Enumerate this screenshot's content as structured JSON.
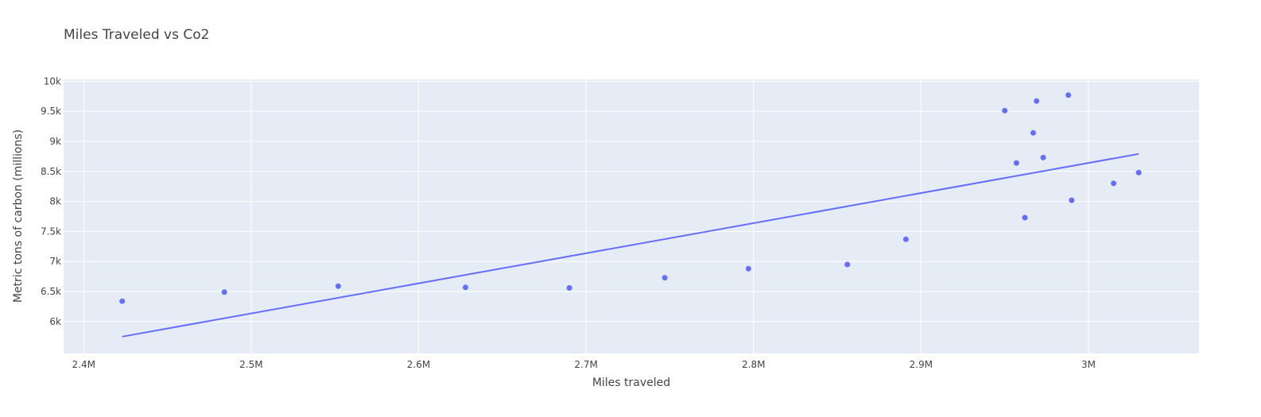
{
  "chart_data": {
    "type": "scatter",
    "title": "Miles Traveled vs Co2",
    "xlabel": "Miles traveled",
    "ylabel": "Metric tons of carbon (millions)",
    "xlim": [
      2388000,
      3066000
    ],
    "ylim": [
      5470,
      10030
    ],
    "x_ticks": [
      {
        "value": 2400000,
        "label": "2.4M"
      },
      {
        "value": 2500000,
        "label": "2.5M"
      },
      {
        "value": 2600000,
        "label": "2.6M"
      },
      {
        "value": 2700000,
        "label": "2.7M"
      },
      {
        "value": 2800000,
        "label": "2.8M"
      },
      {
        "value": 2900000,
        "label": "2.9M"
      },
      {
        "value": 3000000,
        "label": "3M"
      }
    ],
    "y_ticks": [
      {
        "value": 6000,
        "label": "6k"
      },
      {
        "value": 6500,
        "label": "6.5k"
      },
      {
        "value": 7000,
        "label": "7k"
      },
      {
        "value": 7500,
        "label": "7.5k"
      },
      {
        "value": 8000,
        "label": "8k"
      },
      {
        "value": 8500,
        "label": "8.5k"
      },
      {
        "value": 9000,
        "label": "9k"
      },
      {
        "value": 9500,
        "label": "9.5k"
      },
      {
        "value": 10000,
        "label": "10k"
      }
    ],
    "grid": true,
    "colors": {
      "series": "#636efa",
      "plot_bg": "#e5ecf6",
      "grid": "#ffffff",
      "text": "#444444"
    },
    "series": [
      {
        "mode": "markers",
        "points": [
          {
            "x": 2423000,
            "y": 6340
          },
          {
            "x": 2484000,
            "y": 6490
          },
          {
            "x": 2552000,
            "y": 6590
          },
          {
            "x": 2628000,
            "y": 6570
          },
          {
            "x": 2690000,
            "y": 6560
          },
          {
            "x": 2747000,
            "y": 6730
          },
          {
            "x": 2797000,
            "y": 6880
          },
          {
            "x": 2856000,
            "y": 6950
          },
          {
            "x": 2891000,
            "y": 7370
          },
          {
            "x": 2950000,
            "y": 9510
          },
          {
            "x": 2957000,
            "y": 8640
          },
          {
            "x": 2962000,
            "y": 7730
          },
          {
            "x": 2967000,
            "y": 9140
          },
          {
            "x": 2969000,
            "y": 9670
          },
          {
            "x": 2973000,
            "y": 8730
          },
          {
            "x": 2988000,
            "y": 9770
          },
          {
            "x": 2990000,
            "y": 8020
          },
          {
            "x": 3015000,
            "y": 8300
          },
          {
            "x": 3030000,
            "y": 8480
          }
        ]
      },
      {
        "mode": "lines",
        "points": [
          {
            "x": 2423000,
            "y": 5750
          },
          {
            "x": 3030000,
            "y": 8790
          }
        ]
      }
    ]
  }
}
